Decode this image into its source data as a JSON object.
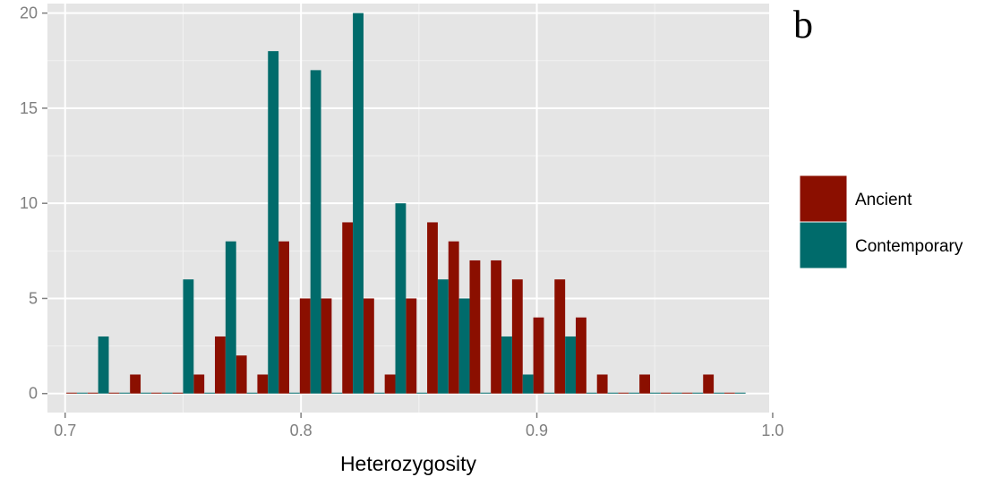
{
  "chart_data": {
    "type": "bar",
    "title": "",
    "panel_label": "b",
    "xlabel": "Heterozygosity",
    "ylabel": "",
    "xlim": [
      0.6925,
      0.9985
    ],
    "ylim": [
      -1,
      20.5
    ],
    "x_ticks": [
      "0.7",
      "0.8",
      "0.9",
      "1.0"
    ],
    "x_tick_values": [
      0.7,
      0.8,
      0.9,
      1.0
    ],
    "y_ticks": [
      "0",
      "5",
      "10",
      "15",
      "20"
    ],
    "y_tick_values": [
      0,
      5,
      10,
      15,
      20
    ],
    "grid": true,
    "legend": "right",
    "bin_centers": [
      0.705,
      0.714,
      0.723,
      0.732,
      0.741,
      0.75,
      0.759,
      0.768,
      0.777,
      0.786,
      0.795,
      0.804,
      0.813,
      0.822,
      0.831,
      0.84,
      0.849,
      0.858,
      0.867,
      0.876,
      0.885,
      0.894,
      0.903,
      0.912,
      0.921,
      0.93,
      0.939,
      0.948,
      0.957,
      0.966,
      0.975,
      0.984
    ],
    "series": [
      {
        "name": "Ancient",
        "color": "#8b0f00",
        "values": [
          0,
          0,
          0,
          1,
          0,
          0,
          1,
          3,
          2,
          1,
          8,
          5,
          5,
          9,
          5,
          1,
          5,
          9,
          8,
          7,
          7,
          6,
          4,
          6,
          4,
          1,
          0,
          1,
          0,
          0,
          1,
          0
        ]
      },
      {
        "name": "Contemporary",
        "color": "#006b6b",
        "values": [
          0,
          3,
          0,
          0,
          0,
          6,
          0,
          8,
          0,
          18,
          0,
          17,
          0,
          20,
          0,
          10,
          0,
          6,
          5,
          0,
          3,
          1,
          0,
          3,
          0,
          0,
          0,
          0,
          0,
          0,
          0,
          0
        ]
      }
    ]
  }
}
